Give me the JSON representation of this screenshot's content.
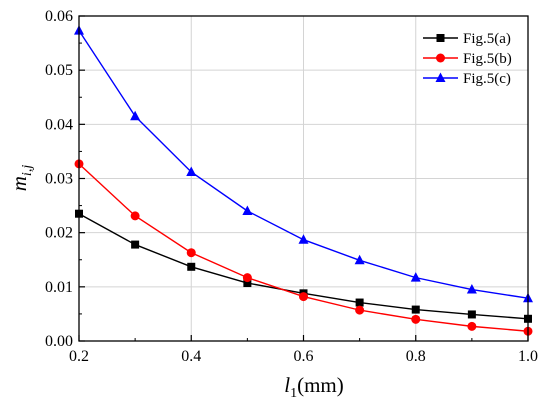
{
  "chart_data": {
    "type": "line",
    "x": [
      0.2,
      0.3,
      0.4,
      0.5,
      0.6,
      0.7,
      0.8,
      0.9,
      1.0
    ],
    "xlim": [
      0.2,
      1.0
    ],
    "ylim": [
      0.0,
      0.06
    ],
    "xticks": [
      "0.2",
      "0.4",
      "0.6",
      "0.8",
      "1.0"
    ],
    "yticks": [
      "0.00",
      "0.01",
      "0.02",
      "0.03",
      "0.04",
      "0.05",
      "0.06"
    ],
    "xlabel": {
      "main": "l",
      "sub": "1",
      "unit": "(mm)"
    },
    "ylabel": {
      "main": "m",
      "sub": "i,j"
    },
    "grid": true,
    "legend_position": "top-right",
    "series": [
      {
        "name": "Fig.5(a)",
        "color": "#000000",
        "marker": "square",
        "values": [
          0.0235,
          0.0178,
          0.0137,
          0.0107,
          0.0088,
          0.0071,
          0.0058,
          0.0049,
          0.0041
        ]
      },
      {
        "name": "Fig.5(b)",
        "color": "#ff0000",
        "marker": "circle",
        "values": [
          0.0327,
          0.0231,
          0.0163,
          0.0117,
          0.0082,
          0.0057,
          0.004,
          0.0027,
          0.0018
        ]
      },
      {
        "name": "Fig.5(c)",
        "color": "#0000ff",
        "marker": "triangle",
        "values": [
          0.0573,
          0.0415,
          0.0312,
          0.024,
          0.0187,
          0.0149,
          0.0117,
          0.0095,
          0.0079
        ]
      }
    ]
  }
}
